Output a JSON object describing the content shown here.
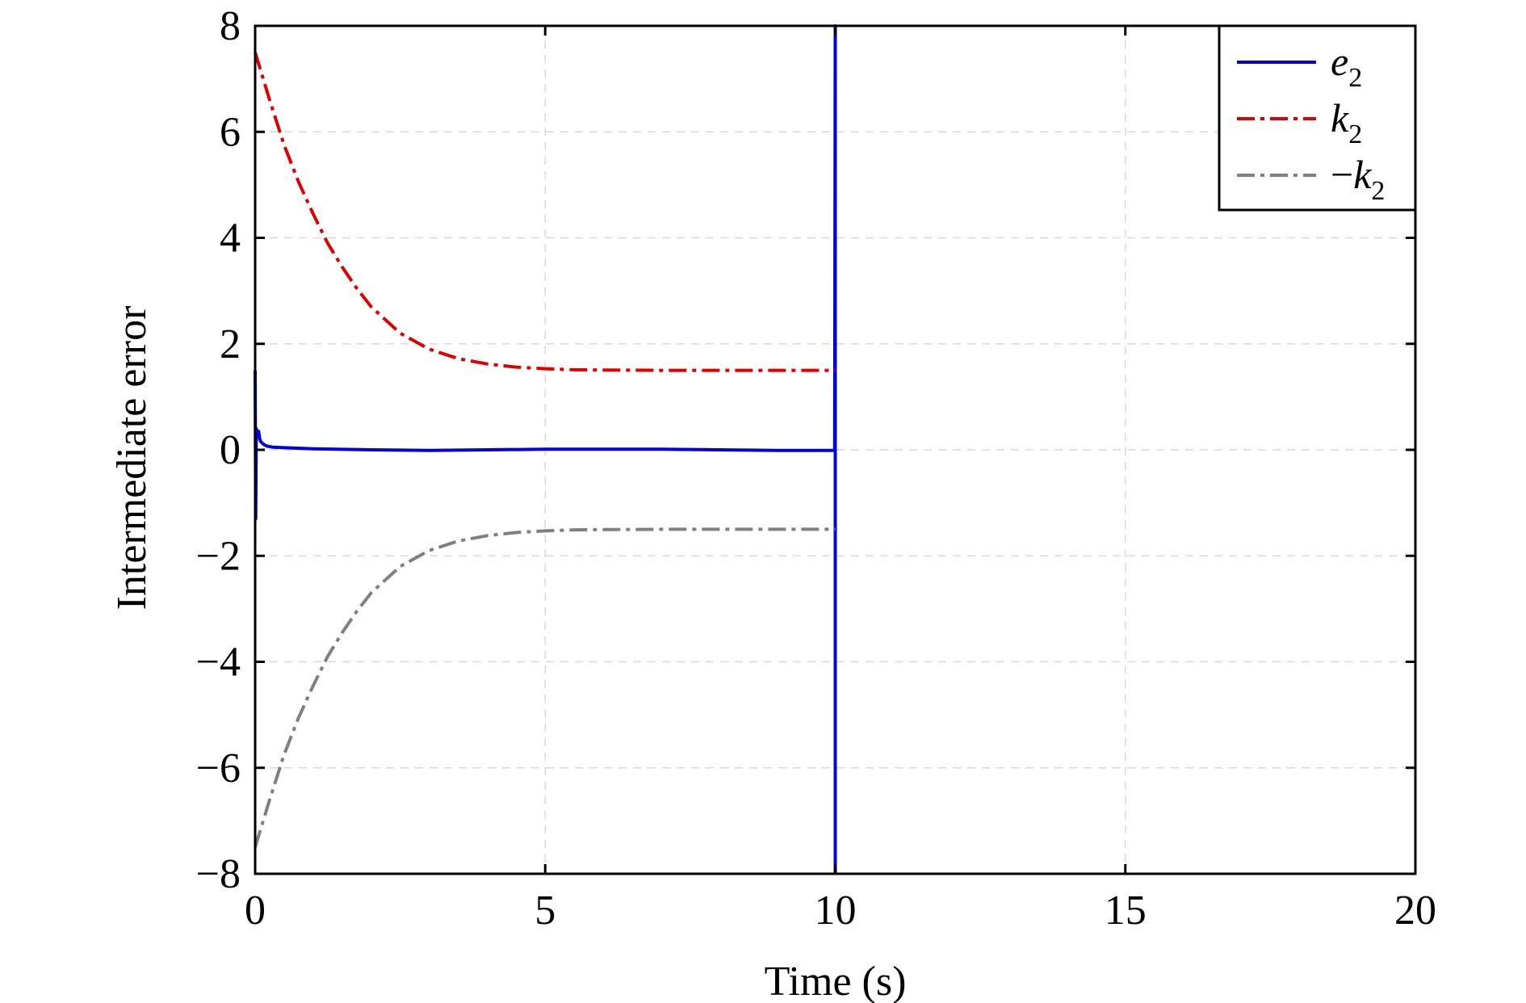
{
  "chart_data": {
    "type": "line",
    "title": "",
    "xlabel": "Time (s)",
    "ylabel": "Intermediate error",
    "xlim": [
      0,
      20
    ],
    "ylim": [
      -8,
      8
    ],
    "x_ticks": [
      0,
      5,
      10,
      15,
      20
    ],
    "y_ticks": [
      -8,
      -6,
      -4,
      -2,
      0,
      2,
      4,
      6,
      8
    ],
    "x_tick_labels": [
      "0",
      "5",
      "10",
      "15",
      "20"
    ],
    "y_tick_labels": [
      "−8",
      "−6",
      "−4",
      "−2",
      "0",
      "2",
      "4",
      "6",
      "8"
    ],
    "grid": true,
    "legend_position": "top-right",
    "series": [
      {
        "name": "e",
        "name_sub": "2",
        "name_prefix": "",
        "color": "#0000dd",
        "style": "solid",
        "x": [
          0,
          0.01,
          0.02,
          0.04,
          0.06,
          0.08,
          0.1,
          0.15,
          0.2,
          0.3,
          0.5,
          1,
          2,
          3,
          4,
          5,
          6,
          7,
          8,
          9,
          9.99,
          10,
          10,
          10
        ],
        "y": [
          1.5,
          -1.3,
          0.4,
          0.25,
          0.35,
          0.2,
          0.15,
          0.1,
          0.07,
          0.05,
          0.04,
          0.02,
          0.0,
          -0.01,
          0.0,
          0.01,
          0.01,
          0.01,
          0.0,
          -0.01,
          -0.01,
          8,
          -8,
          -8
        ]
      },
      {
        "name": "k",
        "name_sub": "2",
        "name_prefix": "",
        "color": "#dd0000",
        "style": "dashdot",
        "x": [
          0,
          0.25,
          0.5,
          0.75,
          1,
          1.25,
          1.5,
          1.75,
          2,
          2.5,
          3,
          3.5,
          4,
          4.5,
          5,
          5.5,
          6,
          7,
          8,
          9,
          10
        ],
        "y": [
          7.5,
          6.6,
          5.75,
          5.05,
          4.45,
          3.9,
          3.45,
          3.05,
          2.7,
          2.2,
          1.9,
          1.72,
          1.62,
          1.56,
          1.53,
          1.51,
          1.505,
          1.5,
          1.5,
          1.5,
          1.5
        ]
      },
      {
        "name": "k",
        "name_sub": "2",
        "name_prefix": "−",
        "color": "#808080",
        "style": "dashdot",
        "x": [
          0,
          0.25,
          0.5,
          0.75,
          1,
          1.25,
          1.5,
          1.75,
          2,
          2.5,
          3,
          3.5,
          4,
          4.5,
          5,
          5.5,
          6,
          7,
          8,
          9,
          10
        ],
        "y": [
          -7.5,
          -6.6,
          -5.75,
          -5.05,
          -4.45,
          -3.9,
          -3.45,
          -3.05,
          -2.7,
          -2.2,
          -1.9,
          -1.72,
          -1.62,
          -1.56,
          -1.53,
          -1.51,
          -1.505,
          -1.5,
          -1.5,
          -1.5,
          -1.5
        ]
      }
    ]
  }
}
